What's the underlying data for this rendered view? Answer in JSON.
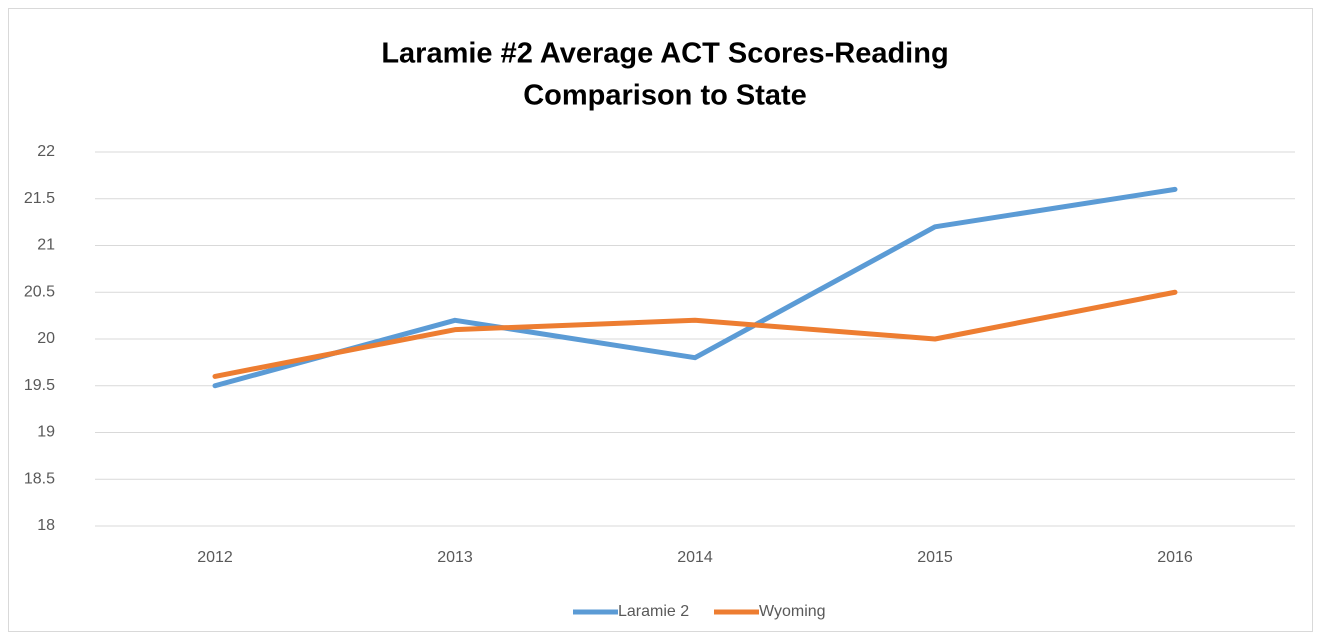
{
  "chart_data": {
    "type": "line",
    "title": [
      "Laramie #2 Average ACT Scores-Reading",
      "Comparison to State"
    ],
    "categories": [
      "2012",
      "2013",
      "2014",
      "2015",
      "2016"
    ],
    "series": [
      {
        "name": "Laramie 2",
        "color": "#5b9bd5",
        "values": [
          19.5,
          20.2,
          19.8,
          21.2,
          21.6
        ]
      },
      {
        "name": "Wyoming",
        "color": "#ed7d31",
        "values": [
          19.6,
          20.1,
          20.2,
          20.0,
          20.5
        ]
      }
    ],
    "ylim": [
      18,
      22
    ],
    "yticks": [
      18,
      18.5,
      19,
      19.5,
      20,
      20.5,
      21,
      21.5,
      22
    ],
    "grid": true,
    "legend": "bottom"
  }
}
